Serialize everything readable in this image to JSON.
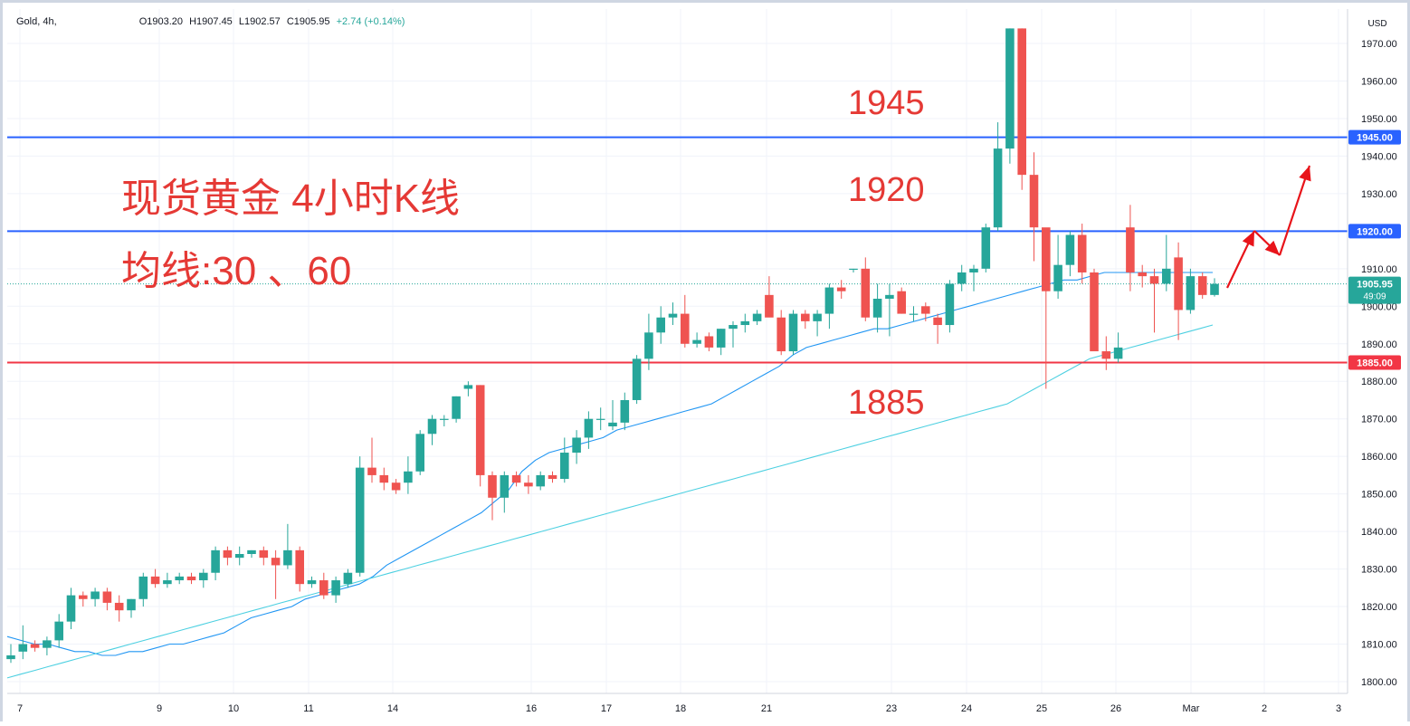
{
  "header": {
    "symbol": "Gold, 4h,",
    "open": "O1903.20",
    "high": "H1907.45",
    "low": "L1902.57",
    "close": "C1905.95",
    "change": "+2.74 (+0.14%)"
  },
  "chart_data": {
    "type": "candlestick",
    "currency": "USD",
    "ylim": [
      1797,
      1977
    ],
    "y_ticks": [
      1800,
      1810,
      1820,
      1830,
      1840,
      1850,
      1860,
      1870,
      1880,
      1890,
      1900,
      1910,
      1920,
      1930,
      1940,
      1950,
      1960,
      1970
    ],
    "x_ticks": [
      "7",
      "9",
      "10",
      "11",
      "14",
      "16",
      "17",
      "18",
      "21",
      "23",
      "24",
      "25",
      "26",
      "Mar",
      "2",
      "3"
    ],
    "candles": [
      {
        "o": 1806,
        "h": 1810,
        "l": 1805,
        "c": 1807
      },
      {
        "o": 1808,
        "h": 1815,
        "l": 1806,
        "c": 1810
      },
      {
        "o": 1810,
        "h": 1811,
        "l": 1808,
        "c": 1809
      },
      {
        "o": 1809,
        "h": 1812,
        "l": 1807,
        "c": 1811
      },
      {
        "o": 1811,
        "h": 1818,
        "l": 1809,
        "c": 1816
      },
      {
        "o": 1816,
        "h": 1825,
        "l": 1814,
        "c": 1823
      },
      {
        "o": 1823,
        "h": 1824,
        "l": 1820,
        "c": 1822
      },
      {
        "o": 1822,
        "h": 1825,
        "l": 1820,
        "c": 1824
      },
      {
        "o": 1824,
        "h": 1825,
        "l": 1819,
        "c": 1821
      },
      {
        "o": 1821,
        "h": 1823,
        "l": 1816,
        "c": 1819
      },
      {
        "o": 1819,
        "h": 1822,
        "l": 1817,
        "c": 1822
      },
      {
        "o": 1822,
        "h": 1829,
        "l": 1820,
        "c": 1828
      },
      {
        "o": 1828,
        "h": 1830,
        "l": 1825,
        "c": 1826
      },
      {
        "o": 1826,
        "h": 1829,
        "l": 1825,
        "c": 1827
      },
      {
        "o": 1827,
        "h": 1829,
        "l": 1826,
        "c": 1828
      },
      {
        "o": 1828,
        "h": 1829,
        "l": 1826,
        "c": 1827
      },
      {
        "o": 1827,
        "h": 1830,
        "l": 1825,
        "c": 1829
      },
      {
        "o": 1829,
        "h": 1836,
        "l": 1827,
        "c": 1835
      },
      {
        "o": 1835,
        "h": 1836,
        "l": 1831,
        "c": 1833
      },
      {
        "o": 1833,
        "h": 1836,
        "l": 1831,
        "c": 1834
      },
      {
        "o": 1834,
        "h": 1835,
        "l": 1833,
        "c": 1835
      },
      {
        "o": 1835,
        "h": 1836,
        "l": 1831,
        "c": 1833
      },
      {
        "o": 1833,
        "h": 1835,
        "l": 1822,
        "c": 1831
      },
      {
        "o": 1831,
        "h": 1842,
        "l": 1830,
        "c": 1835
      },
      {
        "o": 1835,
        "h": 1836,
        "l": 1824,
        "c": 1826
      },
      {
        "o": 1826,
        "h": 1828,
        "l": 1825,
        "c": 1827
      },
      {
        "o": 1827,
        "h": 1829,
        "l": 1822,
        "c": 1823
      },
      {
        "o": 1823,
        "h": 1828,
        "l": 1821,
        "c": 1827
      },
      {
        "o": 1826,
        "h": 1830,
        "l": 1825,
        "c": 1829
      },
      {
        "o": 1829,
        "h": 1860,
        "l": 1828,
        "c": 1857
      },
      {
        "o": 1857,
        "h": 1865,
        "l": 1853,
        "c": 1855
      },
      {
        "o": 1855,
        "h": 1857,
        "l": 1851,
        "c": 1853
      },
      {
        "o": 1853,
        "h": 1854,
        "l": 1850,
        "c": 1851
      },
      {
        "o": 1853,
        "h": 1860,
        "l": 1850,
        "c": 1856
      },
      {
        "o": 1856,
        "h": 1867,
        "l": 1855,
        "c": 1866
      },
      {
        "o": 1866,
        "h": 1871,
        "l": 1863,
        "c": 1870
      },
      {
        "o": 1870,
        "h": 1871,
        "l": 1868,
        "c": 1870
      },
      {
        "o": 1870,
        "h": 1876,
        "l": 1869,
        "c": 1876
      },
      {
        "o": 1878,
        "h": 1880,
        "l": 1876,
        "c": 1879
      },
      {
        "o": 1879,
        "h": 1879,
        "l": 1852,
        "c": 1855
      },
      {
        "o": 1855,
        "h": 1856,
        "l": 1843,
        "c": 1849
      },
      {
        "o": 1849,
        "h": 1856,
        "l": 1845,
        "c": 1855
      },
      {
        "o": 1855,
        "h": 1856,
        "l": 1852,
        "c": 1853
      },
      {
        "o": 1853,
        "h": 1855,
        "l": 1850,
        "c": 1852
      },
      {
        "o": 1852,
        "h": 1856,
        "l": 1851,
        "c": 1855
      },
      {
        "o": 1855,
        "h": 1856,
        "l": 1853,
        "c": 1854
      },
      {
        "o": 1854,
        "h": 1865,
        "l": 1853,
        "c": 1861
      },
      {
        "o": 1861,
        "h": 1867,
        "l": 1858,
        "c": 1865
      },
      {
        "o": 1865,
        "h": 1872,
        "l": 1862,
        "c": 1870
      },
      {
        "o": 1870,
        "h": 1873,
        "l": 1867,
        "c": 1870
      },
      {
        "o": 1868,
        "h": 1875,
        "l": 1867,
        "c": 1869
      },
      {
        "o": 1869,
        "h": 1877,
        "l": 1867,
        "c": 1875
      },
      {
        "o": 1875,
        "h": 1887,
        "l": 1874,
        "c": 1886
      },
      {
        "o": 1886,
        "h": 1898,
        "l": 1883,
        "c": 1893
      },
      {
        "o": 1893,
        "h": 1900,
        "l": 1890,
        "c": 1897
      },
      {
        "o": 1897,
        "h": 1901,
        "l": 1895,
        "c": 1898
      },
      {
        "o": 1898,
        "h": 1903,
        "l": 1889,
        "c": 1890
      },
      {
        "o": 1890,
        "h": 1893,
        "l": 1889,
        "c": 1891
      },
      {
        "o": 1892,
        "h": 1893,
        "l": 1888,
        "c": 1889
      },
      {
        "o": 1889,
        "h": 1894,
        "l": 1887,
        "c": 1894
      },
      {
        "o": 1894,
        "h": 1896,
        "l": 1889,
        "c": 1895
      },
      {
        "o": 1895,
        "h": 1898,
        "l": 1893,
        "c": 1896
      },
      {
        "o": 1896,
        "h": 1899,
        "l": 1895,
        "c": 1898
      },
      {
        "o": 1903,
        "h": 1908,
        "l": 1898,
        "c": 1897
      },
      {
        "o": 1897,
        "h": 1899,
        "l": 1887,
        "c": 1888
      },
      {
        "o": 1888,
        "h": 1899,
        "l": 1887,
        "c": 1898
      },
      {
        "o": 1898,
        "h": 1899,
        "l": 1894,
        "c": 1896
      },
      {
        "o": 1896,
        "h": 1899,
        "l": 1892,
        "c": 1898
      },
      {
        "o": 1898,
        "h": 1906,
        "l": 1894,
        "c": 1905
      },
      {
        "o": 1905,
        "h": 1907,
        "l": 1902,
        "c": 1904
      },
      {
        "o": 1910,
        "h": 1910,
        "l": 1909,
        "c": 1910
      },
      {
        "o": 1910,
        "h": 1913,
        "l": 1896,
        "c": 1897
      },
      {
        "o": 1897,
        "h": 1906,
        "l": 1893,
        "c": 1902
      },
      {
        "o": 1902,
        "h": 1906,
        "l": 1892,
        "c": 1903
      },
      {
        "o": 1904,
        "h": 1905,
        "l": 1898,
        "c": 1898
      },
      {
        "o": 1898,
        "h": 1900,
        "l": 1896,
        "c": 1898
      },
      {
        "o": 1900,
        "h": 1901,
        "l": 1896,
        "c": 1898
      },
      {
        "o": 1897,
        "h": 1898,
        "l": 1890,
        "c": 1895
      },
      {
        "o": 1895,
        "h": 1907,
        "l": 1893,
        "c": 1906
      },
      {
        "o": 1906,
        "h": 1911,
        "l": 1904,
        "c": 1909
      },
      {
        "o": 1909,
        "h": 1911,
        "l": 1904,
        "c": 1910
      },
      {
        "o": 1910,
        "h": 1922,
        "l": 1909,
        "c": 1921
      },
      {
        "o": 1921,
        "h": 1949,
        "l": 1920,
        "c": 1942
      },
      {
        "o": 1942,
        "h": 1974,
        "l": 1938,
        "c": 1974
      },
      {
        "o": 1974,
        "h": 1974,
        "l": 1931,
        "c": 1935
      },
      {
        "o": 1935,
        "h": 1941,
        "l": 1912,
        "c": 1921
      },
      {
        "o": 1921,
        "h": 1920,
        "l": 1878,
        "c": 1904
      },
      {
        "o": 1904,
        "h": 1919,
        "l": 1902,
        "c": 1911
      },
      {
        "o": 1911,
        "h": 1920,
        "l": 1908,
        "c": 1919
      },
      {
        "o": 1919,
        "h": 1922,
        "l": 1906,
        "c": 1909
      },
      {
        "o": 1909,
        "h": 1910,
        "l": 1888,
        "c": 1888
      },
      {
        "o": 1888,
        "h": 1892,
        "l": 1883,
        "c": 1886
      },
      {
        "o": 1886,
        "h": 1893,
        "l": 1885,
        "c": 1889
      },
      {
        "o": 1921,
        "h": 1927,
        "l": 1904,
        "c": 1909
      },
      {
        "o": 1909,
        "h": 1911,
        "l": 1905,
        "c": 1908
      },
      {
        "o": 1908,
        "h": 1910,
        "l": 1893,
        "c": 1906
      },
      {
        "o": 1906,
        "h": 1919,
        "l": 1904,
        "c": 1910
      },
      {
        "o": 1913,
        "h": 1917,
        "l": 1891,
        "c": 1899
      },
      {
        "o": 1899,
        "h": 1910,
        "l": 1898,
        "c": 1908
      },
      {
        "o": 1908,
        "h": 1909,
        "l": 1902,
        "c": 1903
      },
      {
        "o": 1903,
        "h": 1907.45,
        "l": 1902.57,
        "c": 1905.95
      }
    ],
    "ma30": [
      1812,
      1811,
      1810,
      1810,
      1809,
      1808,
      1808,
      1807,
      1807,
      1808,
      1808,
      1809,
      1810,
      1810,
      1811,
      1812,
      1813,
      1815,
      1817,
      1818,
      1819,
      1820,
      1822,
      1823,
      1824,
      1825,
      1826,
      1828,
      1831,
      1833,
      1835,
      1837,
      1839,
      1841,
      1843,
      1845,
      1848,
      1851,
      1856,
      1859,
      1861,
      1862,
      1863,
      1864,
      1865,
      1867,
      1868,
      1869,
      1870,
      1871,
      1872,
      1873,
      1874,
      1876,
      1878,
      1880,
      1882,
      1884,
      1887,
      1889,
      1890,
      1891,
      1892,
      1893,
      1894,
      1894,
      1895,
      1896,
      1897,
      1898,
      1899,
      1900,
      1901,
      1902,
      1903,
      1904,
      1905,
      1906,
      1907,
      1907,
      1908,
      1909,
      1909,
      1909,
      1909,
      1909,
      1909,
      1909,
      1909,
      1909
    ],
    "ma60": [
      1801,
      1802,
      1803,
      1804,
      1805,
      1806,
      1807,
      1808,
      1809,
      1810,
      1811,
      1812,
      1813,
      1814,
      1815,
      1816,
      1817,
      1818,
      1819,
      1820,
      1821,
      1822,
      1823,
      1824,
      1825,
      1826,
      1827,
      1828,
      1829,
      1830,
      1831,
      1832,
      1833,
      1834,
      1835,
      1836,
      1837,
      1838,
      1839,
      1840,
      1841,
      1842,
      1843,
      1844,
      1845,
      1846,
      1847,
      1848,
      1849,
      1850,
      1851,
      1852,
      1853,
      1854,
      1855,
      1856,
      1857,
      1858,
      1859,
      1860,
      1861,
      1862,
      1863,
      1864,
      1865,
      1866,
      1867,
      1868,
      1869,
      1870,
      1871,
      1872,
      1873,
      1874,
      1876,
      1878,
      1880,
      1882,
      1884,
      1886,
      1887,
      1888,
      1889,
      1890,
      1891,
      1892,
      1893,
      1894,
      1895
    ],
    "horizontal_lines": [
      {
        "value": 1945,
        "label": "1945.00",
        "color": "#2962ff"
      },
      {
        "value": 1920,
        "label": "1920.00",
        "color": "#2962ff"
      },
      {
        "value": 1885,
        "label": "1885.00",
        "color": "#f23645"
      }
    ],
    "last_price": {
      "value": 1905.95,
      "label": "1905.95",
      "countdown": "49:09",
      "color": "#26a69a"
    },
    "colors": {
      "up": "#26a69a",
      "down": "#ef5350",
      "ma30": "#2196f3",
      "ma60": "#4dd0e1",
      "annotation": "#e53935",
      "arrow": "#e8141a"
    },
    "annotations": {
      "title_line1": "现货黄金 4小时K线",
      "title_line2": "均线:30 、60",
      "level_1945": "1945",
      "level_1920": "1920",
      "level_1885": "1885"
    }
  }
}
